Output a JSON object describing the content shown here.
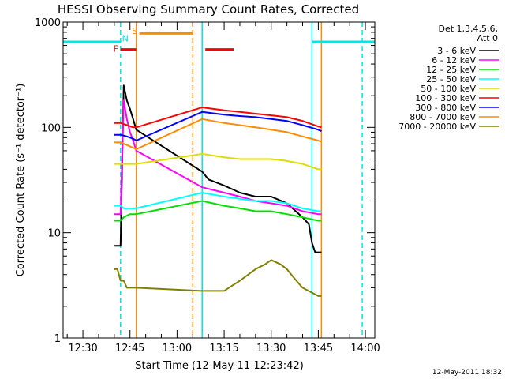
{
  "chart_data": {
    "type": "line",
    "title": "HESSI Observing Summary Count Rates, Corrected",
    "xlabel": "Start Time (12-May-11 12:23:42)",
    "ylabel": "Corrected Count Rate (s⁻¹ detector⁻¹)",
    "xticks": [
      "12:30",
      "12:45",
      "13:00",
      "13:15",
      "13:30",
      "13:45",
      "14:00"
    ],
    "xlim": [
      "12:23:42",
      "14:03:00"
    ],
    "yscale": "log",
    "ylim": [
      1,
      1000
    ],
    "yticks": [
      "1",
      "10",
      "100",
      "1000"
    ],
    "footer": "12-May-2011 18:32",
    "legend": {
      "header": [
        "Det 1,3,4,5,6,",
        "Att 0"
      ],
      "placement": "right"
    },
    "series": [
      {
        "name": "3 - 6 keV",
        "color": "#000000",
        "x": [
          "12:40",
          "12:41",
          "12:42",
          "12:43",
          "12:44",
          "12:45",
          "12:46",
          "12:47",
          "13:08",
          "13:10",
          "13:15",
          "13:20",
          "13:25",
          "13:30",
          "13:35",
          "13:40",
          "13:42",
          "13:43",
          "13:44",
          "13:45",
          "13:46"
        ],
        "y": [
          7.5,
          7.5,
          7.5,
          250,
          180,
          150,
          120,
          95,
          38,
          32,
          28,
          24,
          22,
          22,
          19,
          14,
          12,
          8,
          6.5,
          6.5,
          6.5
        ]
      },
      {
        "name": "6 - 12 keV",
        "color": "#ff00ff",
        "x": [
          "12:40",
          "12:42",
          "12:43",
          "12:44",
          "12:45",
          "12:46",
          "12:47",
          "13:08",
          "13:15",
          "13:20",
          "13:25",
          "13:30",
          "13:35",
          "13:40",
          "13:45",
          "13:46"
        ],
        "y": [
          15,
          15,
          180,
          120,
          90,
          75,
          60,
          27,
          24,
          22,
          20,
          19,
          18,
          16,
          15,
          15
        ]
      },
      {
        "name": "12 - 25 keV",
        "color": "#00e000",
        "x": [
          "12:40",
          "12:42",
          "12:43",
          "12:45",
          "12:47",
          "13:08",
          "13:15",
          "13:20",
          "13:25",
          "13:30",
          "13:35",
          "13:40",
          "13:45",
          "13:46"
        ],
        "y": [
          13,
          13,
          14,
          15,
          15,
          20,
          18,
          17,
          16,
          16,
          15,
          14,
          13,
          13
        ]
      },
      {
        "name": "25 - 50 keV",
        "color": "#00ffff",
        "x": [
          "12:40",
          "12:42",
          "12:43",
          "12:45",
          "12:47",
          "13:08",
          "13:15",
          "13:20",
          "13:25",
          "13:30",
          "13:35",
          "13:40",
          "13:45",
          "13:46"
        ],
        "y": [
          18,
          18,
          17,
          17,
          17,
          24,
          22,
          21,
          20,
          20,
          19,
          17,
          16,
          16
        ]
      },
      {
        "name": "50 - 100 keV",
        "color": "#dddd00",
        "x": [
          "12:40",
          "12:42",
          "12:44",
          "12:46",
          "12:47",
          "13:08",
          "13:15",
          "13:20",
          "13:25",
          "13:30",
          "13:35",
          "13:40",
          "13:45",
          "13:46"
        ],
        "y": [
          45,
          45,
          45,
          45,
          45,
          56,
          52,
          50,
          50,
          50,
          48,
          45,
          40,
          40
        ]
      },
      {
        "name": "100 - 300 keV",
        "color": "#ff0000",
        "x": [
          "12:40",
          "12:42",
          "12:44",
          "12:46",
          "12:47",
          "13:08",
          "13:15",
          "13:20",
          "13:25",
          "13:30",
          "13:35",
          "13:40",
          "13:45",
          "13:46"
        ],
        "y": [
          110,
          110,
          105,
          100,
          100,
          155,
          145,
          140,
          135,
          130,
          125,
          115,
          102,
          100
        ]
      },
      {
        "name": "300 - 800 keV",
        "color": "#0000ff",
        "x": [
          "12:40",
          "12:42",
          "12:44",
          "12:46",
          "12:47",
          "13:08",
          "13:15",
          "13:20",
          "13:25",
          "13:30",
          "13:35",
          "13:40",
          "13:45",
          "13:46"
        ],
        "y": [
          85,
          85,
          82,
          78,
          75,
          140,
          132,
          128,
          125,
          120,
          115,
          105,
          95,
          92
        ]
      },
      {
        "name": "800 - 7000 keV",
        "color": "#ff8c00",
        "x": [
          "12:40",
          "12:42",
          "12:44",
          "12:46",
          "12:47",
          "13:08",
          "13:15",
          "13:20",
          "13:25",
          "13:30",
          "13:35",
          "13:40",
          "13:45",
          "13:46"
        ],
        "y": [
          72,
          72,
          68,
          64,
          62,
          120,
          110,
          105,
          100,
          95,
          90,
          82,
          75,
          73
        ]
      },
      {
        "name": "7000 - 20000 keV",
        "color": "#808000",
        "x": [
          "12:40",
          "12:41",
          "12:42",
          "12:43",
          "12:44",
          "12:47",
          "13:08",
          "13:15",
          "13:18",
          "13:20",
          "13:25",
          "13:28",
          "13:30",
          "13:33",
          "13:35",
          "13:38",
          "13:40",
          "13:45",
          "13:46"
        ],
        "y": [
          4.5,
          4.5,
          3.5,
          3.5,
          3.0,
          3.0,
          2.8,
          2.8,
          3.2,
          3.5,
          4.5,
          5.0,
          5.5,
          5.0,
          4.5,
          3.5,
          3.0,
          2.5,
          2.5
        ]
      }
    ],
    "state_bars": [
      {
        "label": "",
        "color": "#00e5e5",
        "start": "12:23:42",
        "end": "12:42",
        "level": 650
      },
      {
        "label": "F",
        "color": "#ff0000",
        "start": "12:42",
        "end": "12:47",
        "level": 550
      },
      {
        "label": "S",
        "color": "#ff8c00",
        "start": "12:48",
        "end": "13:05",
        "level": 780
      },
      {
        "label": "",
        "color": "#ff0000",
        "start": "13:09",
        "end": "13:18",
        "level": 550
      },
      {
        "label": "",
        "color": "#00e5e5",
        "start": "13:43",
        "end": "14:03:00",
        "level": 650
      }
    ],
    "state_labels": [
      {
        "text": "F",
        "color": "#ff0000",
        "time": "12:40:30",
        "level": 560
      },
      {
        "text": "N",
        "color": "#00e5e5",
        "time": "12:43:30",
        "level": 700
      },
      {
        "text": "S",
        "color": "#ff8c00",
        "time": "12:46:30",
        "level": 830
      }
    ],
    "vertical_lines": [
      {
        "time": "12:42",
        "color": "#00e5e5",
        "style": "dashed"
      },
      {
        "time": "12:47",
        "color": "#ff8c00",
        "style": "solid"
      },
      {
        "time": "13:05",
        "color": "#ff8c00",
        "style": "dashed"
      },
      {
        "time": "13:08",
        "color": "#00e5e5",
        "style": "solid"
      },
      {
        "time": "13:43",
        "color": "#00e5e5",
        "style": "solid"
      },
      {
        "time": "13:46",
        "color": "#ff8c00",
        "style": "solid"
      },
      {
        "time": "13:59",
        "color": "#00e5e5",
        "style": "dashed"
      }
    ]
  }
}
